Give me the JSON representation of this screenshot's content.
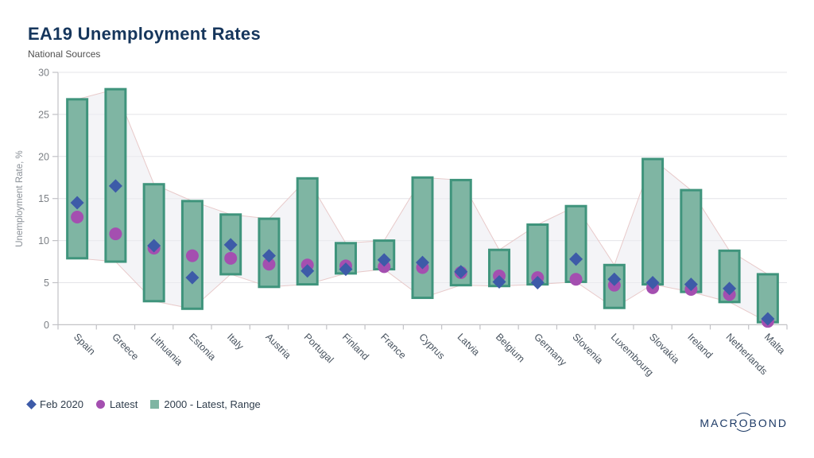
{
  "header": {
    "title": "EA19 Unemployment Rates",
    "subtitle": "National Sources"
  },
  "chart_data": {
    "type": "range-bar-with-markers",
    "title": "EA19 Unemployment Rates",
    "subtitle": "National Sources",
    "ylabel": "Unemployment Rate, %",
    "ylim": [
      0,
      30
    ],
    "yticks": [
      0,
      5,
      10,
      15,
      20,
      25,
      30
    ],
    "grid": "horizontal",
    "legend_position": "bottom-left",
    "categories": [
      "Spain",
      "Greece",
      "Lithuania",
      "Estonia",
      "Italy",
      "Austria",
      "Portugal",
      "Finland",
      "France",
      "Cyprus",
      "Latvia",
      "Belgium",
      "Germany",
      "Slovenia",
      "Luxembourg",
      "Slovakia",
      "Ireland",
      "Netherlands",
      "Malta"
    ],
    "series": [
      {
        "name": "Feb 2020",
        "marker": "diamond",
        "color": "#3d5ba8",
        "values": [
          14.5,
          16.5,
          9.4,
          5.6,
          9.5,
          8.2,
          6.4,
          6.6,
          7.7,
          7.4,
          6.3,
          5.1,
          5.0,
          7.8,
          5.4,
          5.0,
          4.8,
          4.3,
          0.7
        ]
      },
      {
        "name": "Latest",
        "marker": "circle",
        "color": "#a44fb0",
        "values": [
          12.8,
          10.8,
          9.1,
          8.2,
          7.9,
          7.2,
          7.1,
          7.0,
          6.9,
          6.8,
          6.2,
          5.8,
          5.6,
          5.4,
          4.7,
          4.4,
          4.2,
          3.6,
          0.4
        ]
      },
      {
        "name": "2000 - Latest, Range",
        "marker": "range-bar",
        "color": "#7fb5a3",
        "border_color": "#3f947c",
        "min": [
          7.9,
          7.5,
          2.8,
          1.9,
          6.0,
          4.5,
          4.8,
          6.1,
          6.6,
          3.2,
          4.7,
          4.6,
          4.8,
          5.1,
          2.0,
          4.8,
          3.9,
          2.7,
          0.3
        ],
        "max": [
          26.8,
          28.0,
          16.7,
          14.7,
          13.1,
          12.6,
          17.4,
          9.7,
          10.0,
          17.5,
          17.2,
          8.9,
          11.9,
          14.1,
          7.1,
          19.7,
          16.0,
          8.8,
          6.0
        ]
      }
    ],
    "envelope": {
      "fill": "#ededf2",
      "stroke": "#e8caca"
    }
  },
  "legend": {
    "items": [
      {
        "label": "Feb 2020"
      },
      {
        "label": "Latest"
      },
      {
        "label": "2000 - Latest, Range"
      }
    ]
  },
  "branding": {
    "logo_left": "MACR",
    "logo_o": "O",
    "logo_right": "BOND"
  },
  "colors": {
    "title": "#16365c",
    "range_fill": "#7fb5a3",
    "range_border": "#3f947c",
    "feb_2020_marker": "#3d5ba8",
    "latest_marker": "#a44fb0",
    "envelope_fill": "#ededf2",
    "envelope_stroke": "#e8caca",
    "grid": "#e4e4e8",
    "axis": "#c2c2c6"
  }
}
